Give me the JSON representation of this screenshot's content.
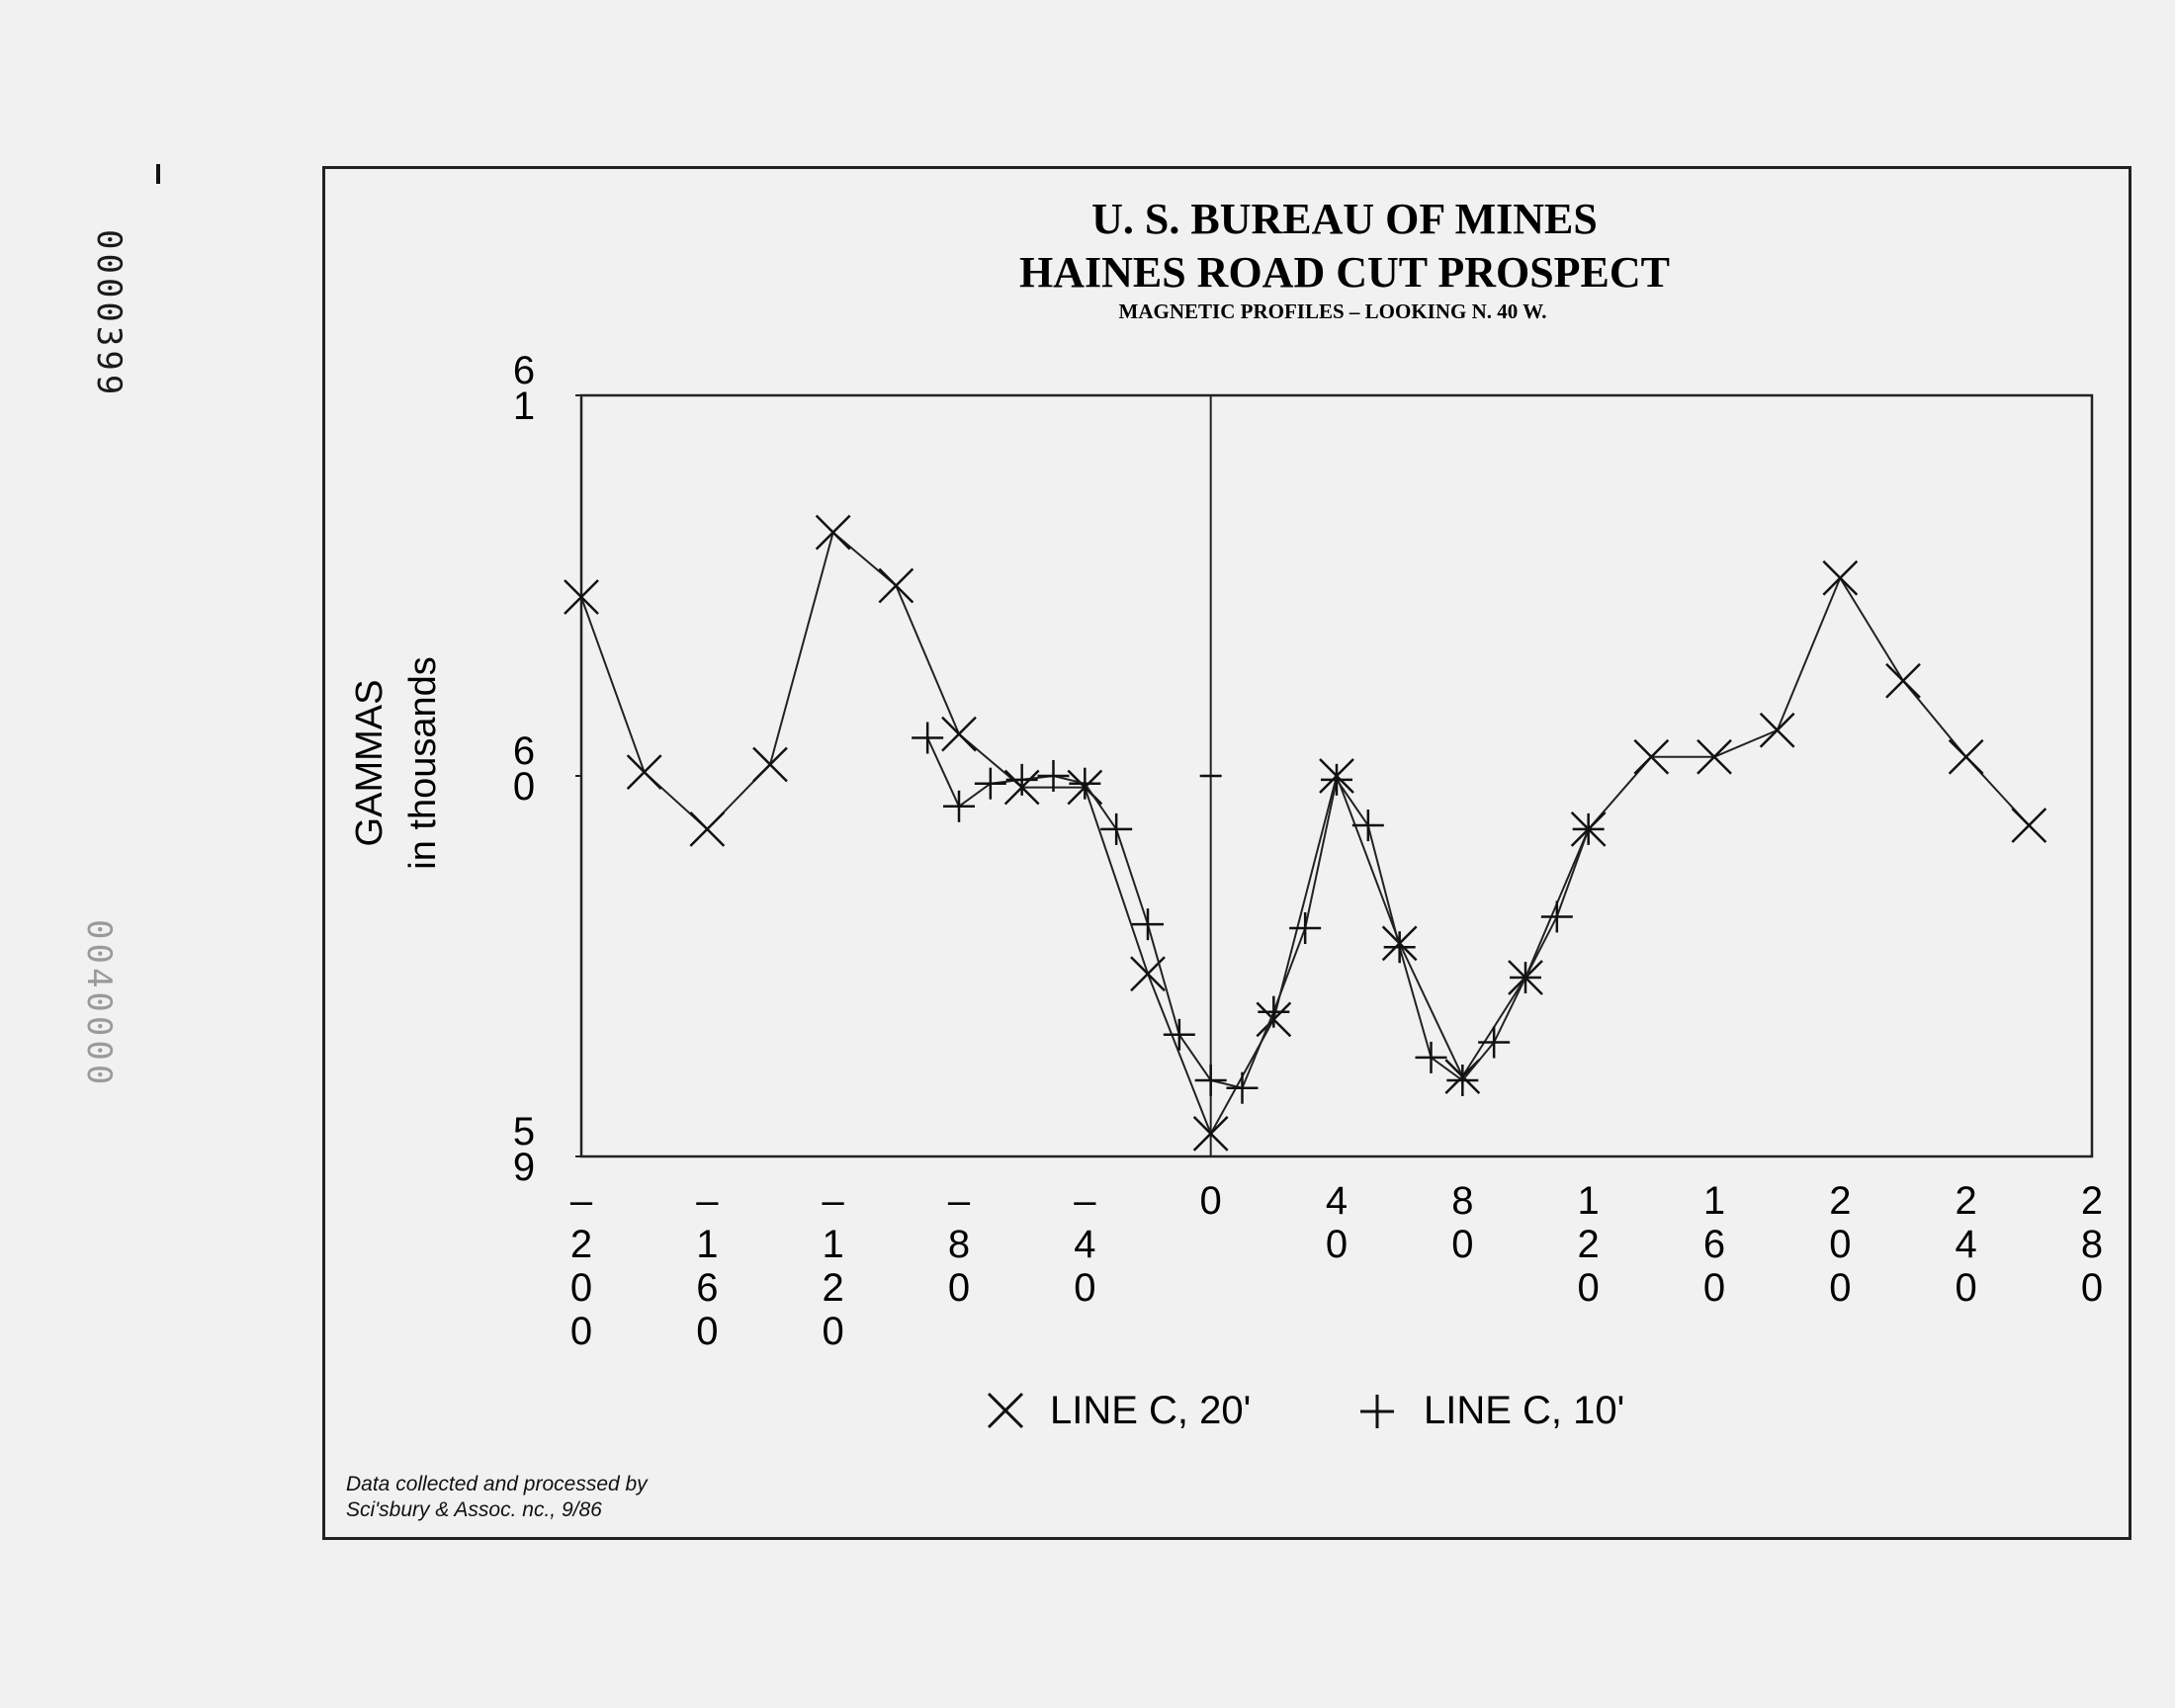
{
  "side_stamps": {
    "top": "0000399",
    "middle": "0040000"
  },
  "title": "U. S. BUREAU OF MINES",
  "subtitle_1": "HAINES ROAD CUT PROSPECT",
  "subtitle_2": "MAGNETIC PROFILES – LOOKING N. 40 W.",
  "credit_line_1": "Data collected and processed by",
  "credit_line_2": "Sci'sbury & Assoc. nc., 9/86",
  "chart_data": {
    "type": "line",
    "title": "U. S. BUREAU OF MINES",
    "subtitle": "HAINES ROAD CUT PROSPECT",
    "note": "MAGNETIC PROFILES – LOOKING N. 40 W.",
    "ylabel": [
      "GAMMAS",
      "in thousands"
    ],
    "ylim": [
      59,
      61
    ],
    "y_ticks": [
      {
        "value": 61,
        "label": [
          "6",
          "1"
        ]
      },
      {
        "value": 60,
        "label": [
          "6",
          "0"
        ]
      },
      {
        "value": 59,
        "label": [
          "5",
          "9"
        ]
      }
    ],
    "xlim": [
      -200,
      280
    ],
    "x_ticks": [
      {
        "value": -200,
        "label": [
          "–",
          "2",
          "0",
          "0"
        ]
      },
      {
        "value": -160,
        "label": [
          "–",
          "1",
          "6",
          "0"
        ]
      },
      {
        "value": -120,
        "label": [
          "–",
          "1",
          "2",
          "0"
        ]
      },
      {
        "value": -80,
        "label": [
          "–",
          "8",
          "0"
        ]
      },
      {
        "value": -40,
        "label": [
          "–",
          "4",
          "0"
        ]
      },
      {
        "value": 0,
        "label": [
          "0"
        ]
      },
      {
        "value": 40,
        "label": [
          "4",
          "0"
        ]
      },
      {
        "value": 80,
        "label": [
          "8",
          "0"
        ]
      },
      {
        "value": 120,
        "label": [
          "1",
          "2",
          "0"
        ]
      },
      {
        "value": 160,
        "label": [
          "1",
          "6",
          "0"
        ]
      },
      {
        "value": 200,
        "label": [
          "2",
          "0",
          "0"
        ]
      },
      {
        "value": 240,
        "label": [
          "2",
          "4",
          "0"
        ]
      },
      {
        "value": 280,
        "label": [
          "2",
          "8",
          "0"
        ]
      }
    ],
    "zero_line_x": 0,
    "legend_position": "bottom-center",
    "series": [
      {
        "name": "LINE C, 20'",
        "marker": "x",
        "points": [
          {
            "x": -200,
            "y": 60.47
          },
          {
            "x": -180,
            "y": 60.01
          },
          {
            "x": -160,
            "y": 59.86
          },
          {
            "x": -140,
            "y": 60.03
          },
          {
            "x": -120,
            "y": 60.64
          },
          {
            "x": -100,
            "y": 60.5
          },
          {
            "x": -80,
            "y": 60.11
          },
          {
            "x": -60,
            "y": 59.97
          },
          {
            "x": -40,
            "y": 59.97
          },
          {
            "x": -20,
            "y": 59.48
          },
          {
            "x": 0,
            "y": 59.06
          },
          {
            "x": 20,
            "y": 59.36
          },
          {
            "x": 40,
            "y": 60.0
          },
          {
            "x": 60,
            "y": 59.56
          },
          {
            "x": 80,
            "y": 59.21
          },
          {
            "x": 100,
            "y": 59.47
          },
          {
            "x": 120,
            "y": 59.86
          },
          {
            "x": 140,
            "y": 60.05
          },
          {
            "x": 160,
            "y": 60.05
          },
          {
            "x": 180,
            "y": 60.12
          },
          {
            "x": 200,
            "y": 60.52
          },
          {
            "x": 220,
            "y": 60.25
          },
          {
            "x": 240,
            "y": 60.05
          },
          {
            "x": 260,
            "y": 59.87
          }
        ]
      },
      {
        "name": "LINE C, 10'",
        "marker": "+",
        "points": [
          {
            "x": -90,
            "y": 60.1
          },
          {
            "x": -80,
            "y": 59.92
          },
          {
            "x": -70,
            "y": 59.98
          },
          {
            "x": -60,
            "y": 59.99
          },
          {
            "x": -50,
            "y": 60.0
          },
          {
            "x": -40,
            "y": 59.98
          },
          {
            "x": -30,
            "y": 59.86
          },
          {
            "x": -20,
            "y": 59.61
          },
          {
            "x": -10,
            "y": 59.32
          },
          {
            "x": 0,
            "y": 59.2
          },
          {
            "x": 10,
            "y": 59.18
          },
          {
            "x": 20,
            "y": 59.38
          },
          {
            "x": 30,
            "y": 59.6
          },
          {
            "x": 40,
            "y": 59.99
          },
          {
            "x": 50,
            "y": 59.87
          },
          {
            "x": 60,
            "y": 59.55
          },
          {
            "x": 70,
            "y": 59.26
          },
          {
            "x": 80,
            "y": 59.2
          },
          {
            "x": 90,
            "y": 59.3
          },
          {
            "x": 100,
            "y": 59.47
          },
          {
            "x": 110,
            "y": 59.63
          },
          {
            "x": 120,
            "y": 59.86
          }
        ]
      }
    ],
    "extra_markers": [
      {
        "marker": "-",
        "x": 0,
        "y": 60.0
      }
    ]
  }
}
